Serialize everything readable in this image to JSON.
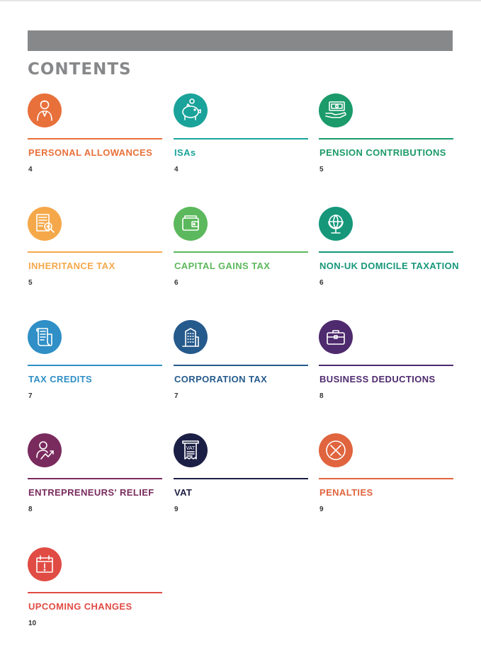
{
  "title": "CONTENTS",
  "entries": [
    {
      "label": "PERSONAL ALLOWANCES",
      "page": "4",
      "color": "#e8703a",
      "icon": "person-icon"
    },
    {
      "label": "ISAs",
      "page": "4",
      "color": "#1aa39a",
      "icon": "piggy-bank-icon"
    },
    {
      "label": "PENSION CONTRIBUTIONS",
      "page": "5",
      "color": "#1b9a6a",
      "icon": "money-hand-icon"
    },
    {
      "label": "INHERITANCE TAX",
      "page": "5",
      "color": "#f5a84a",
      "icon": "document-magnifier-icon"
    },
    {
      "label": "CAPITAL GAINS TAX",
      "page": "6",
      "color": "#5cb85c",
      "icon": "wallet-icon"
    },
    {
      "label": "NON-UK DOMICILE TAXATION",
      "page": "6",
      "color": "#16977a",
      "icon": "globe-icon"
    },
    {
      "label": "TAX CREDITS",
      "page": "7",
      "color": "#2f8fc6",
      "icon": "scroll-icon"
    },
    {
      "label": "CORPORATION TAX",
      "page": "7",
      "color": "#255a8c",
      "icon": "building-icon"
    },
    {
      "label": "BUSINESS DEDUCTIONS",
      "page": "8",
      "color": "#4e2a6e",
      "icon": "briefcase-icon"
    },
    {
      "label": "ENTREPRENEURS' RELIEF",
      "page": "8",
      "color": "#7a2b5e",
      "icon": "person-growth-icon"
    },
    {
      "label": "VAT",
      "page": "9",
      "color": "#1c1f45",
      "icon": "vat-receipt-icon"
    },
    {
      "label": "PENALTIES",
      "page": "9",
      "color": "#e0643e",
      "icon": "cross-icon"
    },
    {
      "label": "UPCOMING CHANGES",
      "page": "10",
      "color": "#e04c44",
      "icon": "calendar-alert-icon"
    }
  ]
}
